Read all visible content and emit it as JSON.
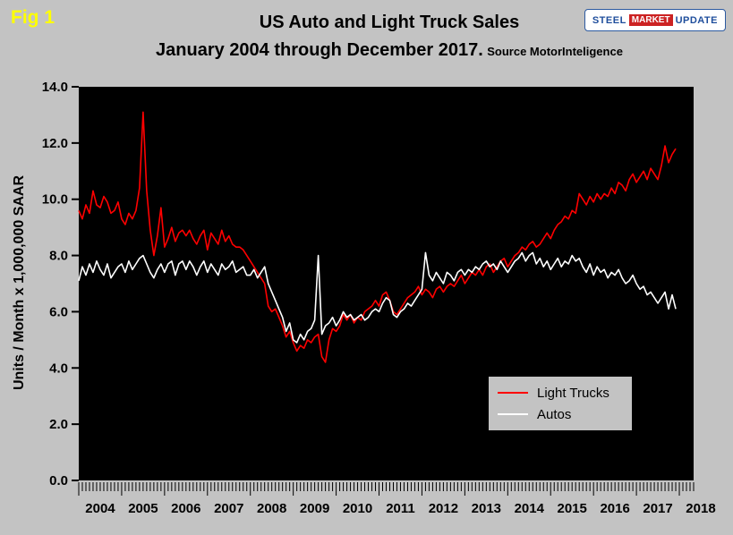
{
  "fig_label": "Fig 1",
  "title": "US Auto and Light Truck Sales",
  "subtitle": "January 2004 through December 2017.",
  "source": "Source MotorInteligence",
  "ylabel": "Units / Month x 1,000,000 SAAR",
  "logo": {
    "steel": "STEEL",
    "market": "MARKET",
    "update": "UPDATE"
  },
  "chart_data": {
    "type": "line",
    "title": "US Auto and Light Truck Sales",
    "subtitle": "January 2004 through December 2017. Source MotorInteligence",
    "xlabel": "",
    "ylabel": "Units / Month x 1,000,000 SAAR",
    "x_start": "2004-01",
    "x_end": "2017-12",
    "x_frequency": "monthly",
    "x_tick_labels": [
      "2004",
      "2005",
      "2006",
      "2007",
      "2008",
      "2009",
      "2010",
      "2011",
      "2012",
      "2013",
      "2014",
      "2015",
      "2016",
      "2017",
      "2018"
    ],
    "ylim": [
      0,
      14
    ],
    "yticks": [
      0,
      2,
      4,
      6,
      8,
      10,
      12,
      14
    ],
    "grid": false,
    "plot_background": "#000000",
    "legend_position": "inside-bottom-right",
    "series": [
      {
        "name": "Light Trucks",
        "color": "#ff0000",
        "values": [
          9.6,
          9.3,
          9.8,
          9.5,
          10.3,
          9.8,
          9.7,
          10.1,
          9.9,
          9.5,
          9.6,
          9.9,
          9.3,
          9.1,
          9.5,
          9.3,
          9.6,
          10.4,
          13.1,
          10.3,
          8.9,
          8.0,
          8.7,
          9.7,
          8.3,
          8.6,
          9.0,
          8.5,
          8.8,
          8.9,
          8.7,
          8.9,
          8.6,
          8.4,
          8.7,
          8.9,
          8.2,
          8.8,
          8.6,
          8.4,
          8.9,
          8.5,
          8.7,
          8.4,
          8.3,
          8.3,
          8.2,
          8.0,
          7.8,
          7.6,
          7.4,
          7.2,
          7.0,
          6.2,
          6.0,
          6.1,
          5.8,
          5.5,
          5.1,
          5.3,
          4.9,
          4.6,
          4.8,
          4.7,
          5.0,
          4.9,
          5.1,
          5.2,
          4.4,
          4.2,
          5.0,
          5.4,
          5.3,
          5.5,
          5.9,
          5.7,
          5.9,
          5.6,
          5.8,
          5.7,
          6.0,
          6.1,
          6.2,
          6.4,
          6.2,
          6.6,
          6.7,
          6.4,
          6.0,
          5.9,
          6.1,
          6.3,
          6.5,
          6.6,
          6.7,
          6.9,
          6.6,
          6.8,
          6.7,
          6.5,
          6.8,
          6.9,
          6.7,
          6.9,
          7.0,
          6.9,
          7.1,
          7.3,
          7.0,
          7.2,
          7.4,
          7.3,
          7.5,
          7.3,
          7.6,
          7.7,
          7.4,
          7.6,
          7.8,
          7.9,
          7.6,
          7.8,
          8.0,
          8.1,
          8.3,
          8.2,
          8.4,
          8.5,
          8.3,
          8.4,
          8.6,
          8.8,
          8.6,
          8.9,
          9.1,
          9.2,
          9.4,
          9.3,
          9.6,
          9.5,
          10.2,
          10.0,
          9.8,
          10.1,
          9.9,
          10.2,
          10.0,
          10.2,
          10.1,
          10.4,
          10.2,
          10.6,
          10.5,
          10.3,
          10.7,
          10.9,
          10.6,
          10.8,
          11.0,
          10.7,
          11.1,
          10.9,
          10.7,
          11.2,
          11.9,
          11.3,
          11.6,
          11.8
        ]
      },
      {
        "name": "Autos",
        "color": "#ffffff",
        "values": [
          7.1,
          7.6,
          7.3,
          7.7,
          7.4,
          7.8,
          7.5,
          7.3,
          7.7,
          7.2,
          7.4,
          7.6,
          7.7,
          7.4,
          7.8,
          7.5,
          7.7,
          7.9,
          8.0,
          7.7,
          7.4,
          7.2,
          7.5,
          7.7,
          7.4,
          7.7,
          7.8,
          7.3,
          7.7,
          7.8,
          7.5,
          7.8,
          7.6,
          7.3,
          7.6,
          7.8,
          7.4,
          7.7,
          7.5,
          7.3,
          7.7,
          7.5,
          7.6,
          7.8,
          7.4,
          7.5,
          7.6,
          7.3,
          7.3,
          7.5,
          7.2,
          7.4,
          7.6,
          7.0,
          6.7,
          6.4,
          6.1,
          5.8,
          5.3,
          5.6,
          5.0,
          4.9,
          5.2,
          5.0,
          5.3,
          5.4,
          5.7,
          8.0,
          5.2,
          5.5,
          5.6,
          5.8,
          5.5,
          5.7,
          6.0,
          5.8,
          5.9,
          5.7,
          5.8,
          5.9,
          5.7,
          5.8,
          6.0,
          6.1,
          6.0,
          6.3,
          6.5,
          6.4,
          5.9,
          5.8,
          6.0,
          6.1,
          6.3,
          6.2,
          6.4,
          6.6,
          6.8,
          8.1,
          7.3,
          7.1,
          7.4,
          7.2,
          7.0,
          7.4,
          7.3,
          7.1,
          7.4,
          7.5,
          7.3,
          7.5,
          7.4,
          7.6,
          7.5,
          7.7,
          7.8,
          7.6,
          7.7,
          7.5,
          7.8,
          7.6,
          7.4,
          7.6,
          7.8,
          7.9,
          8.1,
          7.8,
          8.0,
          8.1,
          7.7,
          7.9,
          7.6,
          7.8,
          7.5,
          7.7,
          7.9,
          7.6,
          7.8,
          7.7,
          8.0,
          7.8,
          7.9,
          7.6,
          7.4,
          7.7,
          7.3,
          7.6,
          7.4,
          7.5,
          7.2,
          7.4,
          7.3,
          7.5,
          7.2,
          7.0,
          7.1,
          7.3,
          7.0,
          6.8,
          6.9,
          6.6,
          6.7,
          6.5,
          6.3,
          6.5,
          6.7,
          6.1,
          6.6,
          6.1
        ]
      }
    ]
  }
}
